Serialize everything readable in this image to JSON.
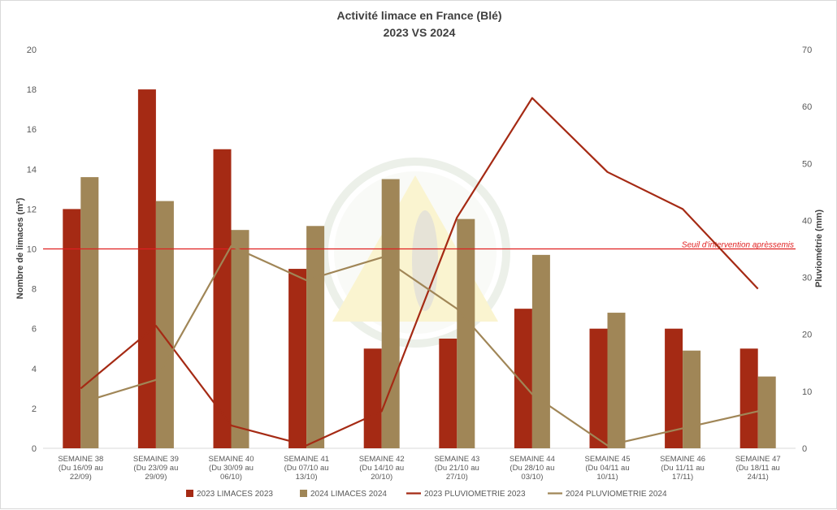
{
  "chart_data": {
    "type": "bar",
    "title": "Activité limace en France (Blé)",
    "subtitle": "2023 VS 2024",
    "ylabel": "Nombre de limaces (m²)",
    "y2label": "Pluviométrie (mm)",
    "ylim": [
      0,
      20
    ],
    "y2lim": [
      0,
      70
    ],
    "yticks": [
      "0",
      "2",
      "4",
      "6",
      "8",
      "10",
      "12",
      "14",
      "16",
      "18",
      "20"
    ],
    "y2ticks": [
      "0",
      "10",
      "20",
      "30",
      "40",
      "50",
      "60",
      "70"
    ],
    "grid": false,
    "legend_position": "bottom",
    "categories": [
      [
        "SEMAINE 38",
        "(Du 16/09 au",
        "22/09)"
      ],
      [
        "SEMAINE 39",
        "(Du 23/09 au",
        "29/09)"
      ],
      [
        "SEMAINE 40",
        "(Du 30/09 au",
        "06/10)"
      ],
      [
        "SEMAINE 41",
        "(Du 07/10 au",
        "13/10)"
      ],
      [
        "SEMAINE 42",
        "(Du 14/10 au",
        "20/10)"
      ],
      [
        "SEMAINE 43",
        "(Du 21/10 au",
        "27/10)"
      ],
      [
        "SEMAINE 44",
        "(Du 28/10 au",
        "03/10)"
      ],
      [
        "SEMAINE 45",
        "(Du 04/11 au",
        "10/11)"
      ],
      [
        "SEMAINE 46",
        "(Du 11/11 au",
        "17/11)"
      ],
      [
        "SEMAINE 47",
        "(Du 18/11 au",
        "24/11)"
      ]
    ],
    "series": [
      {
        "name": "2023 LIMACES 2023",
        "type": "bar",
        "axis": "left",
        "color": "#a52a14",
        "values": [
          12,
          18,
          15,
          9,
          5,
          5.5,
          7,
          6,
          6,
          5
        ]
      },
      {
        "name": "2024 LIMACES 2024",
        "type": "bar",
        "axis": "left",
        "color": "#a08657",
        "values": [
          13.6,
          12.4,
          10.95,
          11.15,
          13.5,
          11.5,
          9.7,
          6.8,
          4.9,
          3.6
        ]
      },
      {
        "name": "2023 PLUVIOMETRIE 2023",
        "type": "line",
        "axis": "right",
        "color": "#a52a14",
        "values": [
          10.5,
          21.5,
          4,
          0.5,
          6.5,
          40.5,
          61.5,
          48.5,
          42,
          28
        ]
      },
      {
        "name": "2024 PLUVIOMETRIE 2024",
        "type": "line",
        "axis": "right",
        "color": "#a08657",
        "values": [
          8,
          12,
          35.5,
          29.5,
          33.5,
          24.5,
          9.5,
          0.5,
          3.5,
          6.5
        ]
      }
    ],
    "threshold": {
      "value": 10,
      "axis": "left",
      "label": "Seuil d'intervention aprèssemis",
      "color": "#e02020"
    }
  }
}
